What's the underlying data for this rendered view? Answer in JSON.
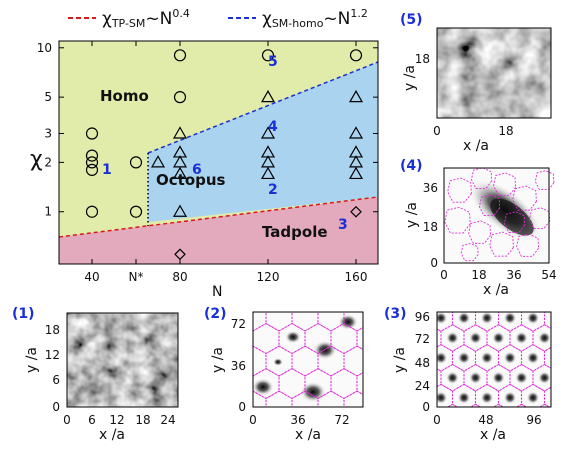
{
  "legend": {
    "tp_label": "χ",
    "tp_sub": "TP-SM",
    "tp_rel": "~N",
    "tp_exp": "0.4",
    "homo_label": "χ",
    "homo_sub": "SM-homo",
    "homo_rel": "~N",
    "homo_exp": "1.2"
  },
  "colors": {
    "homo": "#e2ecaa",
    "octopus": "#a9d3ef",
    "tadpole": "#e3a9bd",
    "tp_line": "#d61a1a",
    "homo_line": "#1a2fd6",
    "label_blue": "#1a2fd6",
    "contour": "#e02ad8"
  },
  "chart_data": [
    {
      "type": "scatter",
      "title": "",
      "xlabel": "N",
      "ylabel": "χ",
      "yscale": "log",
      "xlim": [
        25,
        170
      ],
      "ylim": [
        0.48,
        11
      ],
      "x_ticks": [
        40,
        80,
        120,
        160
      ],
      "x_tick_labels": [
        "40",
        "N*",
        "80",
        "120",
        "160"
      ],
      "nstar_x": 60,
      "y_ticks": [
        1,
        2,
        3,
        5,
        10
      ],
      "y_tick_labels": [
        "1",
        "2",
        "3",
        "5",
        "10"
      ],
      "regions": [
        "Homo",
        "Octopus",
        "Tadpole"
      ],
      "boundaries": [
        {
          "name": "χTP-SM~N^0.4",
          "style": "dashed",
          "color": "#d61a1a",
          "points": [
            [
              25,
              0.585
            ],
            [
              170,
              1.1
            ]
          ]
        },
        {
          "name": "χSM-homo~N^1.2",
          "style": "dashed",
          "color": "#1a2fd6",
          "points": [
            [
              60,
              2.3
            ],
            [
              170,
              8.8
            ]
          ]
        },
        {
          "name": "N*",
          "style": "dotted",
          "color": "#000000",
          "points": [
            [
              60,
              0.66
            ],
            [
              60,
              2.3
            ]
          ]
        }
      ],
      "series": [
        {
          "marker": "circle",
          "points": [
            [
              40,
              1
            ],
            [
              40,
              1.8
            ],
            [
              40,
              2
            ],
            [
              40,
              2.2
            ],
            [
              40,
              3
            ],
            [
              60,
              1
            ],
            [
              60,
              2
            ],
            [
              80,
              5
            ],
            [
              80,
              9
            ],
            [
              120,
              9
            ],
            [
              160,
              9
            ]
          ]
        },
        {
          "marker": "triangle",
          "points": [
            [
              70,
              2
            ],
            [
              80,
              1
            ],
            [
              80,
              1.7
            ],
            [
              80,
              2
            ],
            [
              80,
              2.3
            ],
            [
              80,
              3
            ],
            [
              120,
              1.7
            ],
            [
              120,
              2
            ],
            [
              120,
              2.3
            ],
            [
              120,
              3
            ],
            [
              120,
              5
            ],
            [
              160,
              1.7
            ],
            [
              160,
              2
            ],
            [
              160,
              2.3
            ],
            [
              160,
              3
            ],
            [
              160,
              5
            ]
          ]
        },
        {
          "marker": "diamond",
          "points": [
            [
              80,
              0.55
            ],
            [
              160,
              1
            ]
          ]
        }
      ],
      "point_labels": [
        {
          "text": "1",
          "x": 40,
          "y": 1.9
        },
        {
          "text": "2",
          "x": 120,
          "y": 1.15
        },
        {
          "text": "3",
          "x": 160,
          "y": 0.88
        },
        {
          "text": "4",
          "x": 120,
          "y": 3.1
        },
        {
          "text": "5",
          "x": 120,
          "y": 8.2
        },
        {
          "text": "6",
          "x": 80,
          "y": 1.95
        }
      ]
    }
  ],
  "panels": [
    {
      "id": "5",
      "label": "(5)",
      "xlabel": "x /a",
      "ylabel": "y /a",
      "xticks": [
        "0",
        "18"
      ],
      "yticks": [
        "18"
      ]
    },
    {
      "id": "4",
      "label": "(4)",
      "xlabel": "x /a",
      "ylabel": "y /a",
      "xticks": [
        "0",
        "18",
        "36",
        "54"
      ],
      "yticks": [
        "0",
        "18",
        "36"
      ]
    },
    {
      "id": "1",
      "label": "(1)",
      "xlabel": "x /a",
      "ylabel": "y /a",
      "xticks": [
        "0",
        "6",
        "12",
        "18",
        "24"
      ],
      "yticks": [
        "0",
        "6",
        "12",
        "18"
      ]
    },
    {
      "id": "2",
      "label": "(2)",
      "xlabel": "x /a",
      "ylabel": "y /a",
      "xticks": [
        "0",
        "36",
        "72"
      ],
      "yticks": [
        "0",
        "36",
        "72"
      ]
    },
    {
      "id": "3",
      "label": "(3)",
      "xlabel": "x /a",
      "ylabel": "y /a",
      "xticks": [
        "0",
        "48",
        "96"
      ],
      "yticks": [
        "0",
        "24",
        "48",
        "72",
        "96"
      ]
    }
  ]
}
